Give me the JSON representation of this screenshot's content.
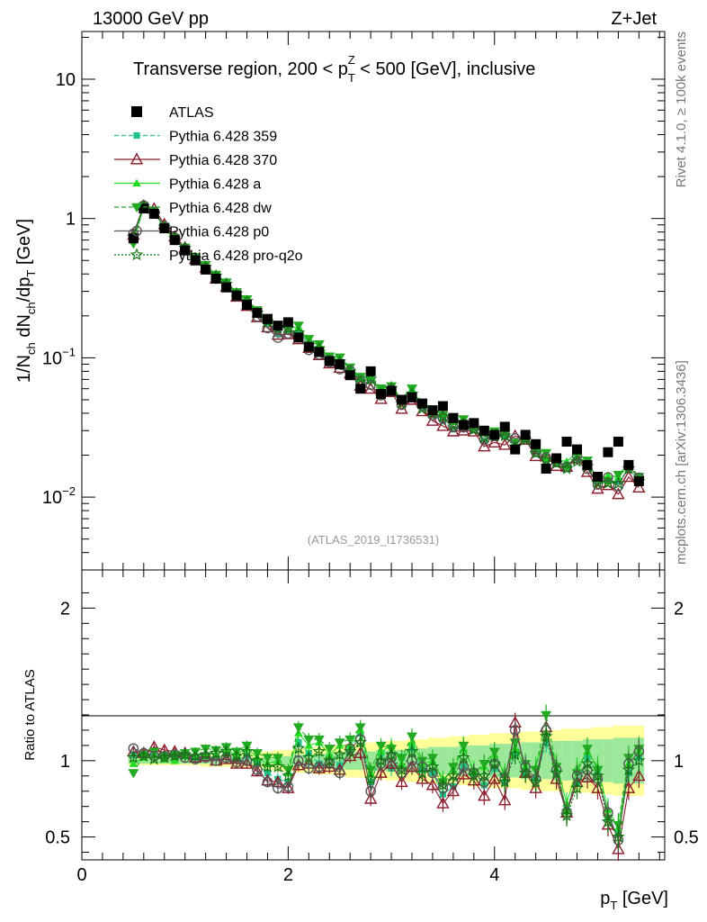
{
  "header": {
    "left": "13000 GeV pp",
    "right": "Z+Jet"
  },
  "side_labels": {
    "rivet": "Rivet 4.1.0, ≥ 100k events",
    "mcplots": "mcplots.cern.ch [arXiv:1306.3436]"
  },
  "chart_data": {
    "type": "scatter",
    "title": "Transverse region, 200 < p_T^Z < 500 [GeV], inclusive",
    "title_parts": {
      "a": "Transverse region, 200 < p",
      "sub": "T",
      "sup": "Z",
      "b": " < 500 [GeV], inclusive"
    },
    "analysis_id": "(ATLAS_2019_I1736531)",
    "xlabel": "p_T [GeV]",
    "xlabel_parts": {
      "main": "p",
      "sub": "T",
      "unit": " [GeV]"
    },
    "ylabel": "1/N_ch dN_ch/dp_T [GeV]",
    "ylabel_parts": {
      "a": "1/N",
      "sub1": "ch",
      "b": " dN",
      "sub2": "ch",
      "c": "/dp",
      "sub3": "T",
      "d": " [GeV]"
    },
    "ratio_ylabel": "Ratio to ATLAS",
    "xlim": [
      0,
      5.65
    ],
    "ylim": [
      0.003,
      22
    ],
    "ratio_ylim": [
      0.35,
      2.25
    ],
    "yscale": "log",
    "x_ticks": [
      0,
      2,
      4
    ],
    "x_tick_labels": [
      "0",
      "2",
      "4"
    ],
    "y_ticks": [
      10,
      1,
      0.1,
      0.01
    ],
    "y_tick_labels": [
      {
        "base": "10",
        "exp": ""
      },
      {
        "base": "1",
        "exp": ""
      },
      {
        "base": "10",
        "exp": "−1"
      },
      {
        "base": "10",
        "exp": "−2"
      }
    ],
    "ratio_ticks": [
      2,
      1,
      0.5
    ],
    "ratio_tick_labels": [
      "2",
      "1",
      "0.5"
    ],
    "legend": [
      {
        "name": "ATLAS",
        "color": "#000000",
        "marker": "square",
        "dash": ""
      },
      {
        "name": "Pythia 6.428 359",
        "color": "#1ec38c",
        "marker": "smallsquare",
        "dash": "5,3"
      },
      {
        "name": "Pythia 6.428 370",
        "color": "#8b1a2a",
        "marker": "triangle-open",
        "dash": ""
      },
      {
        "name": "Pythia 6.428 a",
        "color": "#22dd22",
        "marker": "triangle",
        "dash": ""
      },
      {
        "name": "Pythia 6.428 dw",
        "color": "#22aa22",
        "marker": "triangle-down",
        "dash": "5,3"
      },
      {
        "name": "Pythia 6.428 p0",
        "color": "#555555",
        "marker": "circle-open",
        "dash": ""
      },
      {
        "name": "Pythia 6.428 pro-q2o",
        "color": "#117711",
        "marker": "star",
        "dash": "2,2"
      }
    ],
    "x": [
      0.5,
      0.6,
      0.7,
      0.8,
      0.9,
      1.0,
      1.1,
      1.2,
      1.3,
      1.4,
      1.5,
      1.6,
      1.7,
      1.8,
      1.9,
      2.0,
      2.1,
      2.2,
      2.3,
      2.4,
      2.5,
      2.6,
      2.7,
      2.8,
      2.9,
      3.0,
      3.1,
      3.2,
      3.3,
      3.4,
      3.5,
      3.6,
      3.7,
      3.8,
      3.9,
      4.0,
      4.1,
      4.2,
      4.3,
      4.4,
      4.5,
      4.6,
      4.7,
      4.8,
      4.9,
      5.0,
      5.1,
      5.2,
      5.3,
      5.4
    ],
    "data": [
      0.72,
      1.18,
      1.08,
      0.85,
      0.7,
      0.59,
      0.5,
      0.43,
      0.37,
      0.32,
      0.28,
      0.24,
      0.21,
      0.19,
      0.17,
      0.18,
      0.14,
      0.12,
      0.11,
      0.095,
      0.09,
      0.075,
      0.06,
      0.08,
      0.055,
      0.058,
      0.05,
      0.052,
      0.047,
      0.042,
      0.045,
      0.037,
      0.033,
      0.034,
      0.03,
      0.028,
      0.032,
      0.022,
      0.028,
      0.024,
      0.016,
      0.019,
      0.025,
      0.022,
      0.017,
      0.014,
      0.021,
      0.025,
      0.017,
      0.013
    ],
    "series": [
      {
        "name": "Pythia 6.428 359",
        "ratios": [
          1.04,
          1.03,
          1.05,
          1.04,
          1.03,
          1.04,
          1.02,
          1.03,
          1.02,
          1.04,
          1.01,
          1.03,
          0.98,
          0.92,
          0.88,
          0.86,
          1.12,
          1.05,
          0.98,
          1.02,
          0.97,
          1.08,
          1.18,
          0.86,
          1.05,
          0.95,
          1.02,
          1.08,
          0.94,
          0.92,
          0.78,
          0.83,
          0.96,
          0.92,
          0.84,
          0.95,
          0.86,
          1.05,
          0.92,
          0.88,
          1.12,
          0.92,
          0.68,
          0.85,
          1.02,
          0.92,
          0.62,
          0.52,
          0.92,
          1.02
        ]
      },
      {
        "name": "Pythia 6.428 370",
        "ratios": [
          1.06,
          1.05,
          1.09,
          1.07,
          1.06,
          1.05,
          1.02,
          1.03,
          1.0,
          1.01,
          0.98,
          0.98,
          0.93,
          0.87,
          0.86,
          0.82,
          0.97,
          0.98,
          0.95,
          0.96,
          0.94,
          1.03,
          1.05,
          0.75,
          0.92,
          0.98,
          0.86,
          0.96,
          0.88,
          0.84,
          0.72,
          0.8,
          0.91,
          0.87,
          0.77,
          0.88,
          0.74,
          1.25,
          0.92,
          0.82,
          1.22,
          0.88,
          0.66,
          0.86,
          0.89,
          0.82,
          0.58,
          0.42,
          0.82,
          0.9
        ]
      },
      {
        "name": "Pythia 6.428 a",
        "ratios": [
          0.98,
          1.02,
          1.04,
          1.01,
          1.0,
          1.03,
          1.04,
          1.05,
          1.04,
          1.07,
          1.04,
          1.08,
          1.02,
          0.98,
          1.0,
          0.92,
          1.18,
          1.1,
          1.12,
          1.04,
          1.1,
          1.1,
          1.2,
          0.92,
          1.06,
          1.1,
          0.98,
          1.12,
          0.98,
          1.0,
          0.88,
          0.94,
          1.08,
          0.94,
          0.96,
          1.04,
          0.92,
          1.08,
          0.96,
          0.96,
          1.18,
          0.98,
          0.72,
          0.95,
          1.06,
          0.96,
          0.68,
          0.56,
          0.98,
          1.06
        ]
      },
      {
        "name": "Pythia 6.428 dw",
        "ratios": [
          0.92,
          1.04,
          1.06,
          1.03,
          1.04,
          1.05,
          1.06,
          1.08,
          1.07,
          1.09,
          1.06,
          1.1,
          1.05,
          1.02,
          1.02,
          0.94,
          1.22,
          1.14,
          1.14,
          1.08,
          1.12,
          1.14,
          1.22,
          0.94,
          1.1,
          1.08,
          1.02,
          1.16,
          1.0,
          1.02,
          0.86,
          0.96,
          1.1,
          0.92,
          0.98,
          1.06,
          0.9,
          1.12,
          0.98,
          0.94,
          1.3,
          0.96,
          0.66,
          0.92,
          1.08,
          0.94,
          0.62,
          0.58,
          1.02,
          1.08
        ]
      },
      {
        "name": "Pythia 6.428 p0",
        "ratios": [
          1.08,
          1.05,
          1.03,
          1.03,
          1.04,
          1.02,
          1.01,
          1.02,
          1.0,
          1.02,
          0.99,
          1.0,
          0.94,
          0.86,
          0.82,
          0.83,
          1.0,
          0.95,
          0.96,
          0.98,
          0.92,
          1.08,
          1.14,
          0.8,
          0.98,
          1.02,
          0.92,
          1.0,
          0.96,
          0.92,
          0.82,
          0.86,
          0.96,
          0.92,
          0.86,
          0.98,
          0.88,
          1.2,
          0.96,
          0.88,
          1.2,
          0.94,
          0.66,
          0.9,
          0.94,
          0.88,
          0.66,
          0.48,
          0.98,
          1.06
        ]
      },
      {
        "name": "Pythia 6.428 pro-q2o",
        "ratios": [
          1.02,
          1.03,
          1.01,
          1.02,
          1.03,
          1.04,
          1.03,
          1.04,
          1.05,
          1.06,
          1.03,
          1.06,
          1.0,
          0.96,
          0.96,
          0.9,
          1.08,
          1.02,
          1.06,
          1.0,
          1.04,
          1.06,
          1.12,
          0.88,
          1.0,
          1.04,
          0.94,
          1.06,
          0.92,
          0.96,
          0.84,
          0.9,
          1.02,
          0.9,
          0.9,
          0.98,
          0.86,
          1.04,
          0.92,
          0.86,
          1.16,
          0.92,
          0.64,
          0.82,
          0.98,
          0.9,
          0.6,
          0.5,
          0.94,
          1.0
        ]
      }
    ],
    "band_stat_rel": [
      0.02,
      0.02,
      0.02,
      0.02,
      0.02,
      0.02,
      0.02,
      0.02,
      0.02,
      0.02,
      0.02,
      0.02,
      0.02,
      0.02,
      0.03,
      0.03,
      0.04,
      0.04,
      0.04,
      0.05,
      0.05,
      0.06,
      0.06,
      0.06,
      0.07,
      0.07,
      0.07,
      0.08,
      0.08,
      0.09,
      0.09,
      0.09,
      0.1,
      0.1,
      0.1,
      0.11,
      0.11,
      0.11,
      0.12,
      0.12,
      0.12,
      0.13,
      0.13,
      0.13,
      0.14,
      0.14,
      0.14,
      0.15,
      0.15,
      0.15
    ],
    "band_total_rel": [
      0.03,
      0.03,
      0.03,
      0.03,
      0.03,
      0.03,
      0.03,
      0.04,
      0.04,
      0.04,
      0.05,
      0.05,
      0.06,
      0.06,
      0.07,
      0.07,
      0.08,
      0.08,
      0.09,
      0.09,
      0.1,
      0.11,
      0.11,
      0.12,
      0.12,
      0.13,
      0.13,
      0.14,
      0.14,
      0.15,
      0.15,
      0.16,
      0.16,
      0.17,
      0.17,
      0.18,
      0.18,
      0.18,
      0.19,
      0.19,
      0.2,
      0.2,
      0.21,
      0.21,
      0.21,
      0.22,
      0.22,
      0.23,
      0.23,
      0.23
    ],
    "band_colors": {
      "total": "#ffff99",
      "stat": "#9be89b"
    }
  }
}
